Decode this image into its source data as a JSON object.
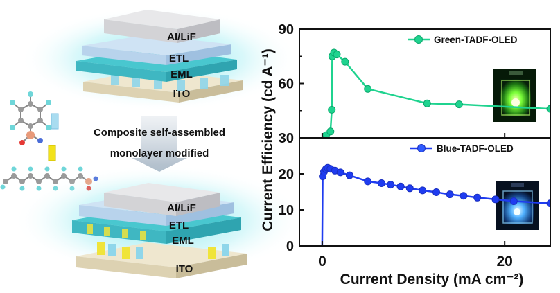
{
  "schematic": {
    "top_stack": {
      "layers": [
        "Al/LiF",
        "ETL",
        "EML",
        "ITO"
      ]
    },
    "bottom_stack": {
      "layers": [
        "Al/LiF",
        "ETL",
        "EML",
        "ITO"
      ]
    },
    "caption_line1": "Composite self-assembled",
    "caption_line2": "monolayer modified",
    "molecules": [
      "fluorinated-phenyl-phosphonic-acid",
      "perfluoroalkyl-chain"
    ]
  },
  "chart_data": [
    {
      "type": "line",
      "series": [
        {
          "name": "Green-TADF-OLED",
          "color": "#1fd38f",
          "x": [
            0.45,
            0.9,
            1.05,
            1.1,
            1.3,
            1.6,
            2.5,
            5.0,
            11.5,
            15.0,
            25.0
          ],
          "y": [
            31.5,
            33.5,
            45.5,
            75.0,
            77.0,
            76.0,
            72.0,
            57.0,
            49.0,
            48.5,
            46.0
          ]
        }
      ],
      "xlim": [
        -2.5,
        25.0
      ],
      "ylim": [
        30,
        90
      ],
      "yticks": [
        30,
        60,
        90
      ],
      "yminor": [
        45,
        75
      ],
      "legend_position": "top-right",
      "inset_photo": "green-device-photo"
    },
    {
      "type": "line",
      "series": [
        {
          "name": "Blue-TADF-OLED",
          "color": "#1f3cf0",
          "x": [
            0.0,
            0.05,
            0.2,
            0.4,
            0.6,
            0.9,
            1.4,
            2.0,
            3.0,
            5.0,
            6.5,
            7.5,
            8.6,
            9.6,
            11.0,
            12.5,
            14.0,
            15.5,
            17.0,
            19.0,
            21.0,
            25.0
          ],
          "y": [
            0.0,
            19.3,
            20.6,
            21.3,
            21.7,
            21.4,
            20.9,
            20.4,
            19.6,
            17.9,
            17.4,
            17.0,
            16.5,
            16.0,
            15.4,
            14.9,
            14.3,
            13.9,
            13.4,
            12.9,
            12.4,
            11.8
          ]
        }
      ],
      "xlim": [
        -2.5,
        25.0
      ],
      "ylim": [
        0,
        30
      ],
      "yticks": [
        0,
        10,
        20
      ],
      "xticks": [
        0,
        20
      ],
      "legend_position": "top-right",
      "inset_photo": "blue-device-photo"
    }
  ],
  "axes": {
    "xlabel": "Current Density (mA cm⁻²)",
    "ylabel": "Current Efficiency (cd A⁻¹)"
  }
}
